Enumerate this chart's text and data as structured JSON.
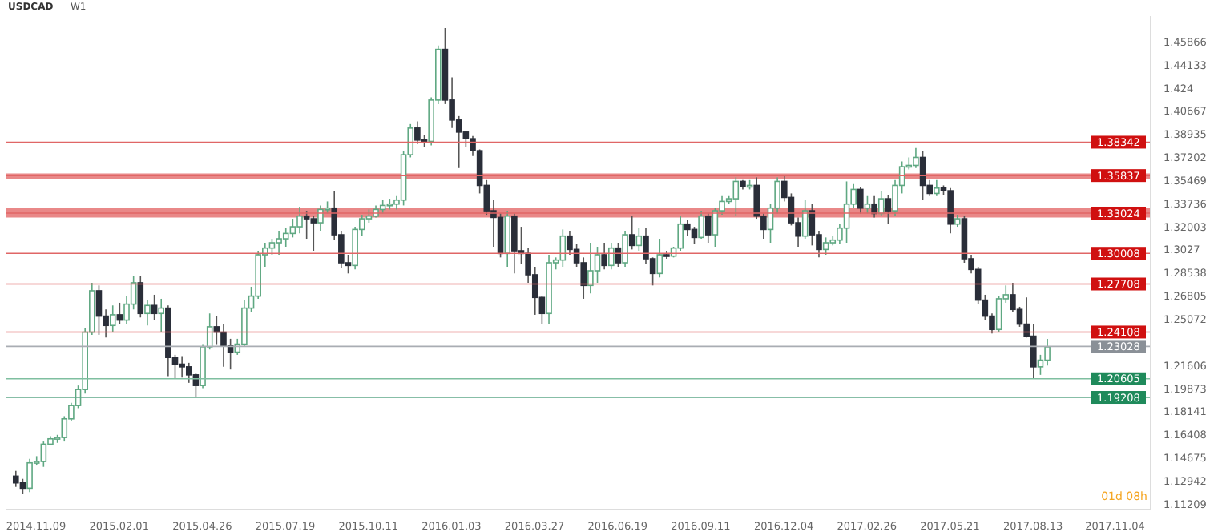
{
  "chart_data": {
    "type": "candlestick",
    "title": "USDCAD",
    "subtitle": "W1",
    "x": [
      "2014-10-19",
      "2014-10-26",
      "2014-11-02",
      "2014-11-09",
      "2014-11-16",
      "2014-11-23",
      "2014-11-30",
      "2014-12-07",
      "2014-12-14",
      "2014-12-21",
      "2014-12-28",
      "2015-01-04",
      "2015-01-11",
      "2015-01-18",
      "2015-01-25",
      "2015-02-01",
      "2015-02-08",
      "2015-02-15",
      "2015-02-22",
      "2015-03-01",
      "2015-03-08",
      "2015-03-15",
      "2015-03-22",
      "2015-03-29",
      "2015-04-05",
      "2015-04-12",
      "2015-04-19",
      "2015-04-26",
      "2015-05-03",
      "2015-05-10",
      "2015-05-17",
      "2015-05-24",
      "2015-05-31",
      "2015-06-07",
      "2015-06-14",
      "2015-06-21",
      "2015-06-28",
      "2015-07-05",
      "2015-07-12",
      "2015-07-19",
      "2015-07-26",
      "2015-08-02",
      "2015-08-09",
      "2015-08-16",
      "2015-08-23",
      "2015-08-30",
      "2015-09-06",
      "2015-09-13",
      "2015-09-20",
      "2015-09-27",
      "2015-10-04",
      "2015-10-11",
      "2015-10-18",
      "2015-10-25",
      "2015-11-01",
      "2015-11-08",
      "2015-11-15",
      "2015-11-22",
      "2015-11-29",
      "2015-12-06",
      "2015-12-13",
      "2015-12-20",
      "2015-12-27",
      "2016-01-03",
      "2016-01-10",
      "2016-01-17",
      "2016-01-24",
      "2016-01-31",
      "2016-02-07",
      "2016-02-14",
      "2016-02-21",
      "2016-02-28",
      "2016-03-06",
      "2016-03-13",
      "2016-03-20",
      "2016-03-27",
      "2016-04-03",
      "2016-04-10",
      "2016-04-17",
      "2016-04-24",
      "2016-05-01",
      "2016-05-08",
      "2016-05-15",
      "2016-05-22",
      "2016-05-29",
      "2016-06-05",
      "2016-06-12",
      "2016-06-19",
      "2016-06-26",
      "2016-07-03",
      "2016-07-10",
      "2016-07-17",
      "2016-07-24",
      "2016-07-31",
      "2016-08-07",
      "2016-08-14",
      "2016-08-21",
      "2016-08-28",
      "2016-09-04",
      "2016-09-11",
      "2016-09-18",
      "2016-09-25",
      "2016-10-02",
      "2016-10-09",
      "2016-10-16",
      "2016-10-23",
      "2016-10-30",
      "2016-11-06",
      "2016-11-13",
      "2016-11-20",
      "2016-11-27",
      "2016-12-04",
      "2016-12-11",
      "2016-12-18",
      "2016-12-25",
      "2017-01-01",
      "2017-01-08",
      "2017-01-15",
      "2017-01-22",
      "2017-01-29",
      "2017-02-05",
      "2017-02-12",
      "2017-02-19",
      "2017-02-26",
      "2017-03-05",
      "2017-03-12",
      "2017-03-19",
      "2017-03-26",
      "2017-04-02",
      "2017-04-09",
      "2017-04-16",
      "2017-04-23",
      "2017-04-30",
      "2017-05-07",
      "2017-05-14",
      "2017-05-21",
      "2017-05-28",
      "2017-06-04",
      "2017-06-11",
      "2017-06-18",
      "2017-06-25",
      "2017-07-02",
      "2017-07-09",
      "2017-07-16",
      "2017-07-23",
      "2017-07-30",
      "2017-08-06",
      "2017-08-13",
      "2017-08-20",
      "2017-08-27"
    ],
    "ohlc": [
      [
        1.133,
        1.137,
        1.125,
        1.128
      ],
      [
        1.128,
        1.131,
        1.12,
        1.124
      ],
      [
        1.124,
        1.146,
        1.121,
        1.143
      ],
      [
        1.143,
        1.148,
        1.141,
        1.144
      ],
      [
        1.144,
        1.159,
        1.14,
        1.157
      ],
      [
        1.157,
        1.163,
        1.156,
        1.161
      ],
      [
        1.161,
        1.164,
        1.158,
        1.162
      ],
      [
        1.162,
        1.178,
        1.159,
        1.176
      ],
      [
        1.176,
        1.188,
        1.174,
        1.186
      ],
      [
        1.186,
        1.201,
        1.184,
        1.198
      ],
      [
        1.198,
        1.244,
        1.195,
        1.241
      ],
      [
        1.241,
        1.278,
        1.239,
        1.272
      ],
      [
        1.272,
        1.276,
        1.239,
        1.253
      ],
      [
        1.253,
        1.258,
        1.237,
        1.246
      ],
      [
        1.246,
        1.261,
        1.241,
        1.254
      ],
      [
        1.254,
        1.263,
        1.247,
        1.25
      ],
      [
        1.25,
        1.268,
        1.247,
        1.262
      ],
      [
        1.262,
        1.283,
        1.258,
        1.278
      ],
      [
        1.278,
        1.283,
        1.252,
        1.255
      ],
      [
        1.255,
        1.265,
        1.246,
        1.261
      ],
      [
        1.261,
        1.269,
        1.25,
        1.255
      ],
      [
        1.255,
        1.266,
        1.241,
        1.259
      ],
      [
        1.259,
        1.261,
        1.208,
        1.222
      ],
      [
        1.222,
        1.224,
        1.206,
        1.217
      ],
      [
        1.217,
        1.223,
        1.207,
        1.215
      ],
      [
        1.215,
        1.218,
        1.203,
        1.209
      ],
      [
        1.209,
        1.21,
        1.192,
        1.201
      ],
      [
        1.201,
        1.232,
        1.199,
        1.23
      ],
      [
        1.23,
        1.255,
        1.228,
        1.245
      ],
      [
        1.245,
        1.253,
        1.232,
        1.241
      ],
      [
        1.241,
        1.247,
        1.215,
        1.231
      ],
      [
        1.231,
        1.236,
        1.213,
        1.226
      ],
      [
        1.226,
        1.236,
        1.224,
        1.232
      ],
      [
        1.232,
        1.265,
        1.23,
        1.259
      ],
      [
        1.259,
        1.275,
        1.256,
        1.268
      ],
      [
        1.268,
        1.302,
        1.266,
        1.299
      ],
      [
        1.299,
        1.308,
        1.29,
        1.304
      ],
      [
        1.304,
        1.311,
        1.299,
        1.308
      ],
      [
        1.308,
        1.317,
        1.299,
        1.311
      ],
      [
        1.311,
        1.319,
        1.305,
        1.315
      ],
      [
        1.315,
        1.326,
        1.312,
        1.32
      ],
      [
        1.32,
        1.335,
        1.315,
        1.328
      ],
      [
        1.328,
        1.332,
        1.311,
        1.326
      ],
      [
        1.326,
        1.328,
        1.302,
        1.323
      ],
      [
        1.323,
        1.336,
        1.317,
        1.333
      ],
      [
        1.333,
        1.339,
        1.33,
        1.334
      ],
      [
        1.334,
        1.347,
        1.31,
        1.314
      ],
      [
        1.314,
        1.317,
        1.289,
        1.293
      ],
      [
        1.293,
        1.299,
        1.285,
        1.291
      ],
      [
        1.291,
        1.32,
        1.288,
        1.318
      ],
      [
        1.318,
        1.329,
        1.313,
        1.326
      ],
      [
        1.326,
        1.333,
        1.323,
        1.328
      ],
      [
        1.328,
        1.336,
        1.327,
        1.333
      ],
      [
        1.333,
        1.34,
        1.33,
        1.336
      ],
      [
        1.336,
        1.341,
        1.333,
        1.337
      ],
      [
        1.337,
        1.343,
        1.333,
        1.34
      ],
      [
        1.34,
        1.377,
        1.336,
        1.374
      ],
      [
        1.374,
        1.397,
        1.372,
        1.394
      ],
      [
        1.394,
        1.399,
        1.382,
        1.385
      ],
      [
        1.385,
        1.389,
        1.38,
        1.384
      ],
      [
        1.384,
        1.417,
        1.381,
        1.415
      ],
      [
        1.415,
        1.456,
        1.412,
        1.453
      ],
      [
        1.453,
        1.469,
        1.412,
        1.415
      ],
      [
        1.415,
        1.432,
        1.394,
        1.4
      ],
      [
        1.4,
        1.403,
        1.364,
        1.391
      ],
      [
        1.391,
        1.392,
        1.38,
        1.386
      ],
      [
        1.386,
        1.388,
        1.373,
        1.377
      ],
      [
        1.377,
        1.378,
        1.345,
        1.351
      ],
      [
        1.351,
        1.355,
        1.329,
        1.332
      ],
      [
        1.332,
        1.34,
        1.305,
        1.327
      ],
      [
        1.327,
        1.33,
        1.297,
        1.3
      ],
      [
        1.3,
        1.332,
        1.29,
        1.328
      ],
      [
        1.328,
        1.33,
        1.285,
        1.302
      ],
      [
        1.302,
        1.32,
        1.292,
        1.3
      ],
      [
        1.3,
        1.304,
        1.278,
        1.284
      ],
      [
        1.284,
        1.29,
        1.254,
        1.267
      ],
      [
        1.267,
        1.268,
        1.247,
        1.255
      ],
      [
        1.255,
        1.299,
        1.247,
        1.293
      ],
      [
        1.293,
        1.297,
        1.288,
        1.295
      ],
      [
        1.295,
        1.318,
        1.29,
        1.313
      ],
      [
        1.313,
        1.317,
        1.299,
        1.303
      ],
      [
        1.303,
        1.307,
        1.29,
        1.293
      ],
      [
        1.293,
        1.297,
        1.266,
        1.276
      ],
      [
        1.276,
        1.308,
        1.27,
        1.287
      ],
      [
        1.287,
        1.305,
        1.278,
        1.299
      ],
      [
        1.299,
        1.308,
        1.288,
        1.291
      ],
      [
        1.291,
        1.308,
        1.288,
        1.304
      ],
      [
        1.304,
        1.308,
        1.29,
        1.293
      ],
      [
        1.293,
        1.317,
        1.29,
        1.314
      ],
      [
        1.314,
        1.328,
        1.303,
        1.306
      ],
      [
        1.306,
        1.319,
        1.302,
        1.313
      ],
      [
        1.313,
        1.319,
        1.292,
        1.296
      ],
      [
        1.296,
        1.297,
        1.276,
        1.285
      ],
      [
        1.285,
        1.311,
        1.282,
        1.299
      ],
      [
        1.299,
        1.302,
        1.296,
        1.298
      ],
      [
        1.298,
        1.305,
        1.297,
        1.304
      ],
      [
        1.304,
        1.328,
        1.302,
        1.322
      ],
      [
        1.322,
        1.325,
        1.313,
        1.318
      ],
      [
        1.318,
        1.32,
        1.307,
        1.312
      ],
      [
        1.312,
        1.332,
        1.311,
        1.328
      ],
      [
        1.328,
        1.33,
        1.308,
        1.314
      ],
      [
        1.314,
        1.334,
        1.305,
        1.332
      ],
      [
        1.332,
        1.343,
        1.329,
        1.339
      ],
      [
        1.339,
        1.343,
        1.337,
        1.341
      ],
      [
        1.341,
        1.357,
        1.328,
        1.354
      ],
      [
        1.354,
        1.355,
        1.348,
        1.35
      ],
      [
        1.35,
        1.355,
        1.348,
        1.351
      ],
      [
        1.351,
        1.357,
        1.326,
        1.328
      ],
      [
        1.328,
        1.33,
        1.311,
        1.318
      ],
      [
        1.318,
        1.337,
        1.308,
        1.334
      ],
      [
        1.334,
        1.357,
        1.33,
        1.354
      ],
      [
        1.354,
        1.359,
        1.339,
        1.342
      ],
      [
        1.342,
        1.345,
        1.321,
        1.323
      ],
      [
        1.323,
        1.327,
        1.305,
        1.313
      ],
      [
        1.313,
        1.34,
        1.311,
        1.332
      ],
      [
        1.332,
        1.337,
        1.306,
        1.314
      ],
      [
        1.314,
        1.317,
        1.297,
        1.303
      ],
      [
        1.303,
        1.312,
        1.299,
        1.308
      ],
      [
        1.308,
        1.313,
        1.306,
        1.31
      ],
      [
        1.31,
        1.322,
        1.307,
        1.319
      ],
      [
        1.319,
        1.354,
        1.308,
        1.337
      ],
      [
        1.337,
        1.352,
        1.334,
        1.348
      ],
      [
        1.348,
        1.35,
        1.33,
        1.334
      ],
      [
        1.334,
        1.343,
        1.33,
        1.337
      ],
      [
        1.337,
        1.343,
        1.327,
        1.33
      ],
      [
        1.33,
        1.347,
        1.328,
        1.341
      ],
      [
        1.341,
        1.344,
        1.322,
        1.332
      ],
      [
        1.332,
        1.355,
        1.328,
        1.351
      ],
      [
        1.351,
        1.369,
        1.345,
        1.365
      ],
      [
        1.365,
        1.372,
        1.363,
        1.366
      ],
      [
        1.366,
        1.379,
        1.364,
        1.372
      ],
      [
        1.372,
        1.377,
        1.34,
        1.351
      ],
      [
        1.351,
        1.355,
        1.343,
        1.345
      ],
      [
        1.345,
        1.355,
        1.343,
        1.349
      ],
      [
        1.349,
        1.351,
        1.344,
        1.347
      ],
      [
        1.347,
        1.349,
        1.315,
        1.322
      ],
      [
        1.322,
        1.329,
        1.32,
        1.326
      ],
      [
        1.326,
        1.328,
        1.293,
        1.296
      ],
      [
        1.296,
        1.299,
        1.285,
        1.288
      ],
      [
        1.288,
        1.29,
        1.262,
        1.265
      ],
      [
        1.265,
        1.269,
        1.25,
        1.253
      ],
      [
        1.253,
        1.255,
        1.24,
        1.243
      ],
      [
        1.243,
        1.268,
        1.241,
        1.266
      ],
      [
        1.266,
        1.276,
        1.263,
        1.269
      ],
      [
        1.269,
        1.278,
        1.256,
        1.258
      ],
      [
        1.258,
        1.26,
        1.245,
        1.247
      ],
      [
        1.247,
        1.267,
        1.237,
        1.238
      ],
      [
        1.238,
        1.247,
        1.206,
        1.215
      ],
      [
        1.215,
        1.224,
        1.209,
        1.22
      ],
      [
        1.22,
        1.236,
        1.216,
        1.23
      ]
    ],
    "xlim": [
      "2014-10-10",
      "2017-12-10"
    ],
    "xticks": [
      {
        "value": "2014-11-09",
        "label": "2014.11.09"
      },
      {
        "value": "2015-02-01",
        "label": "2015.02.01"
      },
      {
        "value": "2015-04-26",
        "label": "2015.04.26"
      },
      {
        "value": "2015-07-19",
        "label": "2015.07.19"
      },
      {
        "value": "2015-10-11",
        "label": "2015.10.11"
      },
      {
        "value": "2016-01-03",
        "label": "2016.01.03"
      },
      {
        "value": "2016-03-27",
        "label": "2016.03.27"
      },
      {
        "value": "2016-06-19",
        "label": "2016.06.19"
      },
      {
        "value": "2016-09-11",
        "label": "2016.09.11"
      },
      {
        "value": "2016-12-04",
        "label": "2016.12.04"
      },
      {
        "value": "2017-02-26",
        "label": "2017.02.26"
      },
      {
        "value": "2017-05-21",
        "label": "2017.05.21"
      },
      {
        "value": "2017-08-13",
        "label": "2017.08.13"
      },
      {
        "value": "2017-11-04",
        "label": "2017.11.04"
      }
    ],
    "ylim": [
      1.108,
      1.478
    ],
    "yticks": [
      1.11209,
      1.12942,
      1.14675,
      1.16408,
      1.18141,
      1.19873,
      1.21606,
      1.25072,
      1.26805,
      1.28538,
      1.3027,
      1.32003,
      1.33736,
      1.35469,
      1.37202,
      1.38935,
      1.40667,
      1.424,
      1.44133,
      1.45866
    ],
    "ref_lines": [
      {
        "axis": "y",
        "value": 1.38342,
        "label": "1.38342",
        "color": "#e06666"
      },
      {
        "axis": "y",
        "value": 1.35837,
        "label": "1.35837",
        "color": "#e06666"
      },
      {
        "axis": "y",
        "value": 1.33024,
        "label": "1.33024",
        "color": "#e06666"
      },
      {
        "axis": "y",
        "value": 1.30008,
        "label": "1.30008",
        "color": "#e06666"
      },
      {
        "axis": "y",
        "value": 1.27708,
        "label": "1.27708",
        "color": "#e06666"
      },
      {
        "axis": "y",
        "value": 1.24108,
        "label": "1.24108",
        "color": "#e06666"
      },
      {
        "axis": "y",
        "value": 1.23028,
        "label": "1.23028",
        "color": "#a9adb3"
      },
      {
        "axis": "y",
        "value": 1.20605,
        "label": "1.20605",
        "color": "#7fbfa0"
      },
      {
        "axis": "y",
        "value": 1.19208,
        "label": "1.19208",
        "color": "#5fa98a"
      }
    ],
    "bands": [
      {
        "axis": "y",
        "from": 1.356,
        "to": 1.36,
        "color": "#e57373"
      },
      {
        "axis": "y",
        "from": 1.327,
        "to": 1.334,
        "color": "#e57373"
      }
    ],
    "annotations": [
      "01d 08h"
    ]
  }
}
